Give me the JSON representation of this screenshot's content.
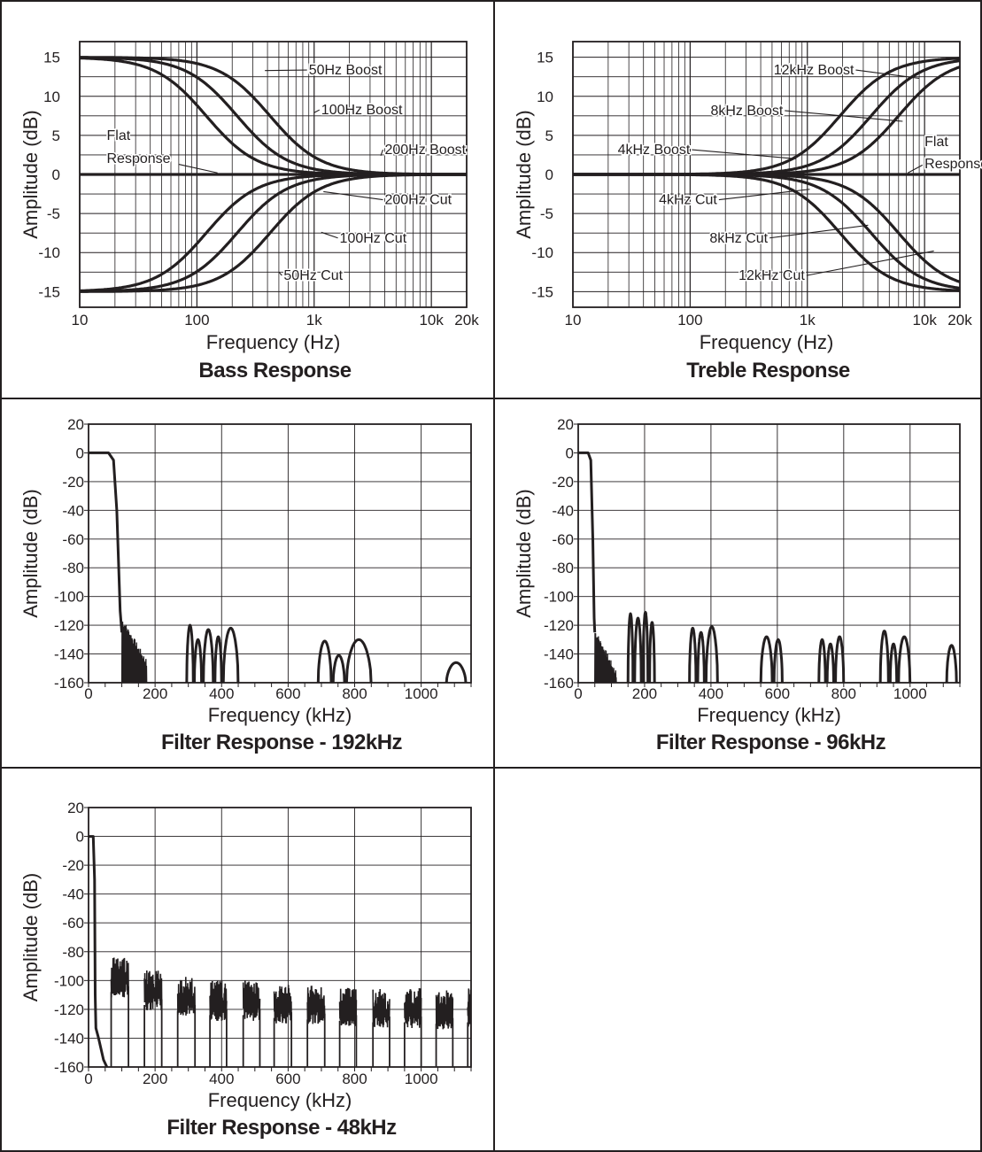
{
  "chart_data": [
    {
      "type": "line",
      "title": "Bass Response",
      "xlabel": "Frequency (Hz)",
      "ylabel": "Amplitude (dB)",
      "xscale": "log",
      "xlim": [
        10,
        20000
      ],
      "ylim": [
        -17,
        17
      ],
      "grid": true,
      "xticks": [
        {
          "v": 10,
          "label": "10"
        },
        {
          "v": 100,
          "label": "100"
        },
        {
          "v": 1000,
          "label": "1k"
        },
        {
          "v": 10000,
          "label": "10k"
        },
        {
          "v": 20000,
          "label": "20k"
        }
      ],
      "yticks": [
        {
          "v": 15,
          "label": "15"
        },
        {
          "v": 10,
          "label": "10"
        },
        {
          "v": 5,
          "label": "5"
        },
        {
          "v": 0,
          "label": "0"
        },
        {
          "v": -5,
          "label": "-5"
        },
        {
          "v": -10,
          "label": "-10"
        },
        {
          "v": -15,
          "label": "-15"
        }
      ],
      "series": [
        {
          "name": "50Hz Boost",
          "shelf": "low",
          "gain": 15,
          "f0": 120
        },
        {
          "name": "100Hz Boost",
          "shelf": "low",
          "gain": 15,
          "f0": 220
        },
        {
          "name": "200Hz Boost",
          "shelf": "low",
          "gain": 15,
          "f0": 420
        },
        {
          "name": "Flat Response",
          "shelf": "flat",
          "gain": 0,
          "f0": 1000
        },
        {
          "name": "200Hz Cut",
          "shelf": "low",
          "gain": -15,
          "f0": 420
        },
        {
          "name": "100Hz Cut",
          "shelf": "low",
          "gain": -15,
          "f0": 220
        },
        {
          "name": "50Hz Cut",
          "shelf": "low",
          "gain": -15,
          "f0": 120
        }
      ],
      "annotations": [
        {
          "text": "50Hz Boost",
          "x": 900,
          "y": 12.8,
          "ax": 380,
          "ay": 13.3
        },
        {
          "text": "100Hz Boost",
          "x": 1150,
          "y": 7.7,
          "ax": 1000,
          "ay": 7.9
        },
        {
          "text": "200Hz Boost",
          "x": 4000,
          "y": 2.6,
          "ax": 3700,
          "ay": 2.4
        },
        {
          "text": "200Hz Cut",
          "x": 4000,
          "y": -3.8,
          "ax": 1200,
          "ay": -2.2
        },
        {
          "text": "100Hz Cut",
          "x": 1650,
          "y": -8.7,
          "ax": 1150,
          "ay": -7.4
        },
        {
          "text": "50Hz Cut",
          "x": 550,
          "y": -13.5,
          "ax": 500,
          "ay": -12.5
        }
      ],
      "flat_label": {
        "line1": "Flat",
        "line2": "Response",
        "x": 17,
        "y1": 4.4,
        "y2": 1.5
      }
    },
    {
      "type": "line",
      "title": "Treble Response",
      "xlabel": "Frequency (Hz)",
      "ylabel": "Amplitude (dB)",
      "xscale": "log",
      "xlim": [
        10,
        20000
      ],
      "ylim": [
        -17,
        17
      ],
      "grid": true,
      "xticks": [
        {
          "v": 10,
          "label": "10"
        },
        {
          "v": 100,
          "label": "100"
        },
        {
          "v": 1000,
          "label": "1k"
        },
        {
          "v": 10000,
          "label": "10k"
        },
        {
          "v": 20000,
          "label": "20k"
        }
      ],
      "yticks": [
        {
          "v": 15,
          "label": "15"
        },
        {
          "v": 10,
          "label": "10"
        },
        {
          "v": 5,
          "label": "5"
        },
        {
          "v": 0,
          "label": "0"
        },
        {
          "v": -5,
          "label": "-5"
        },
        {
          "v": -10,
          "label": "-10"
        },
        {
          "v": -15,
          "label": "-15"
        }
      ],
      "series": [
        {
          "name": "12kHz Boost",
          "shelf": "high",
          "gain": 15,
          "f0": 6000
        },
        {
          "name": "8kHz Boost",
          "shelf": "high",
          "gain": 15,
          "f0": 3500
        },
        {
          "name": "4kHz Boost",
          "shelf": "high",
          "gain": 15,
          "f0": 1900
        },
        {
          "name": "Flat Response",
          "shelf": "flat",
          "gain": 0,
          "f0": 1000
        },
        {
          "name": "4kHz Cut",
          "shelf": "high",
          "gain": -15,
          "f0": 1900
        },
        {
          "name": "8kHz Cut",
          "shelf": "high",
          "gain": -15,
          "f0": 3500
        },
        {
          "name": "12kHz Cut",
          "shelf": "high",
          "gain": -15,
          "f0": 6000
        }
      ],
      "annotations": [
        {
          "text": "12kHz Boost",
          "x": 2500,
          "y": 12.8,
          "ax": 9000,
          "ay": 12.3
        },
        {
          "text": "8kHz Boost",
          "x": 620,
          "y": 7.6,
          "ax": 6500,
          "ay": 6.8
        },
        {
          "text": "4kHz Boost",
          "x": 100,
          "y": 2.6,
          "ax": 800,
          "ay": 2.0
        },
        {
          "text": "4kHz Cut",
          "x": 170,
          "y": -3.8,
          "ax": 1050,
          "ay": -1.9
        },
        {
          "text": "8kHz Cut",
          "x": 460,
          "y": -8.7,
          "ax": 3300,
          "ay": -6.5
        },
        {
          "text": "12kHz Cut",
          "x": 950,
          "y": -13.5,
          "ax": 12000,
          "ay": -9.8
        }
      ],
      "flat_label": {
        "line1": "Flat",
        "line2": "Response",
        "x": 10000,
        "y1": 3.6,
        "y2": 0.8
      }
    },
    {
      "type": "line",
      "title": "Filter Response - 192kHz",
      "xlabel": "Frequency (kHz)",
      "ylabel": "Amplitude (dB)",
      "xlim": [
        0,
        1150
      ],
      "ylim": [
        -160,
        20
      ],
      "grid": true,
      "xticks": [
        {
          "v": 0,
          "label": "0"
        },
        {
          "v": 200,
          "label": "200"
        },
        {
          "v": 400,
          "label": "400"
        },
        {
          "v": 600,
          "label": "600"
        },
        {
          "v": 800,
          "label": "800"
        },
        {
          "v": 1000,
          "label": "1000"
        }
      ],
      "yticks": [
        {
          "v": 20,
          "label": "20"
        },
        {
          "v": 0,
          "label": "0"
        },
        {
          "v": -20,
          "label": "-20"
        },
        {
          "v": -40,
          "label": "-40"
        },
        {
          "v": -60,
          "label": "-60"
        },
        {
          "v": -80,
          "label": "-80"
        },
        {
          "v": -100,
          "label": "-100"
        },
        {
          "v": -120,
          "label": "-120"
        },
        {
          "v": -140,
          "label": "-140"
        },
        {
          "v": -160,
          "label": "-160"
        }
      ],
      "passband": [
        [
          0,
          0
        ],
        [
          60,
          0
        ],
        [
          75,
          -5
        ],
        [
          85,
          -40
        ],
        [
          95,
          -110
        ],
        [
          100,
          -125
        ]
      ],
      "noise": {
        "from": 100,
        "to": 175,
        "top_start": -120,
        "top_end": -150
      },
      "lobes": [
        [
          295,
          315,
          -120
        ],
        [
          318,
          340,
          -130
        ],
        [
          345,
          375,
          -123
        ],
        [
          380,
          400,
          -128
        ],
        [
          405,
          450,
          -122
        ],
        [
          690,
          730,
          -131
        ],
        [
          735,
          770,
          -141
        ],
        [
          775,
          850,
          -130
        ],
        [
          1075,
          1135,
          -146
        ]
      ]
    },
    {
      "type": "line",
      "title": "Filter Response - 96kHz",
      "xlabel": "Frequency (kHz)",
      "ylabel": "Amplitude (dB)",
      "xlim": [
        0,
        1150
      ],
      "ylim": [
        -160,
        20
      ],
      "grid": true,
      "xticks": [
        {
          "v": 0,
          "label": "0"
        },
        {
          "v": 200,
          "label": "200"
        },
        {
          "v": 400,
          "label": "400"
        },
        {
          "v": 600,
          "label": "600"
        },
        {
          "v": 800,
          "label": "800"
        },
        {
          "v": 1000,
          "label": "1000"
        }
      ],
      "yticks": [
        {
          "v": 20,
          "label": "20"
        },
        {
          "v": 0,
          "label": "0"
        },
        {
          "v": -20,
          "label": "-20"
        },
        {
          "v": -40,
          "label": "-40"
        },
        {
          "v": -60,
          "label": "-60"
        },
        {
          "v": -80,
          "label": "-80"
        },
        {
          "v": -100,
          "label": "-100"
        },
        {
          "v": -120,
          "label": "-120"
        },
        {
          "v": -140,
          "label": "-140"
        },
        {
          "v": -160,
          "label": "-160"
        }
      ],
      "passband": [
        [
          0,
          0
        ],
        [
          30,
          0
        ],
        [
          38,
          -5
        ],
        [
          44,
          -60
        ],
        [
          48,
          -115
        ],
        [
          50,
          -125
        ]
      ],
      "noise": {
        "from": 50,
        "to": 115,
        "top_start": -128,
        "top_end": -158
      },
      "lobes": [
        [
          150,
          165,
          -112
        ],
        [
          170,
          190,
          -115
        ],
        [
          195,
          210,
          -111
        ],
        [
          215,
          230,
          -118
        ],
        [
          335,
          355,
          -122
        ],
        [
          360,
          380,
          -125
        ],
        [
          385,
          420,
          -121
        ],
        [
          550,
          585,
          -128
        ],
        [
          590,
          615,
          -130
        ],
        [
          725,
          745,
          -130
        ],
        [
          750,
          770,
          -133
        ],
        [
          775,
          800,
          -128
        ],
        [
          910,
          935,
          -124
        ],
        [
          940,
          960,
          -133
        ],
        [
          965,
          1000,
          -128
        ],
        [
          1110,
          1140,
          -134
        ]
      ]
    },
    {
      "type": "line",
      "title": "Filter Response - 48kHz",
      "xlabel": "Frequency (kHz)",
      "ylabel": "Amplitude (dB)",
      "xlim": [
        0,
        1150
      ],
      "ylim": [
        -160,
        20
      ],
      "grid": true,
      "xticks": [
        {
          "v": 0,
          "label": "0"
        },
        {
          "v": 200,
          "label": "200"
        },
        {
          "v": 400,
          "label": "400"
        },
        {
          "v": 600,
          "label": "600"
        },
        {
          "v": 800,
          "label": "800"
        },
        {
          "v": 1000,
          "label": "1000"
        }
      ],
      "yticks": [
        {
          "v": 20,
          "label": "20"
        },
        {
          "v": 0,
          "label": "0"
        },
        {
          "v": -20,
          "label": "-20"
        },
        {
          "v": -40,
          "label": "-40"
        },
        {
          "v": -60,
          "label": "-60"
        },
        {
          "v": -80,
          "label": "-80"
        },
        {
          "v": -100,
          "label": "-100"
        },
        {
          "v": -120,
          "label": "-120"
        },
        {
          "v": -140,
          "label": "-140"
        },
        {
          "v": -160,
          "label": "-160"
        }
      ],
      "passband": [
        [
          0,
          0
        ],
        [
          14,
          0
        ],
        [
          18,
          -30
        ],
        [
          20,
          -110
        ],
        [
          22,
          -133
        ],
        [
          30,
          -140
        ],
        [
          45,
          -155
        ],
        [
          55,
          -160
        ]
      ],
      "noise": {
        "from": 0,
        "to": 0,
        "top_start": -160,
        "top_end": -160
      },
      "bands": [
        [
          68,
          120,
          -112
        ],
        [
          168,
          220,
          -121
        ],
        [
          268,
          320,
          -125
        ],
        [
          365,
          415,
          -128
        ],
        [
          465,
          515,
          -128
        ],
        [
          558,
          610,
          -130
        ],
        [
          658,
          710,
          -131
        ],
        [
          755,
          805,
          -132
        ],
        [
          855,
          905,
          -133
        ],
        [
          950,
          1000,
          -133
        ],
        [
          1045,
          1095,
          -134
        ],
        [
          1140,
          1150,
          -133
        ]
      ]
    }
  ]
}
